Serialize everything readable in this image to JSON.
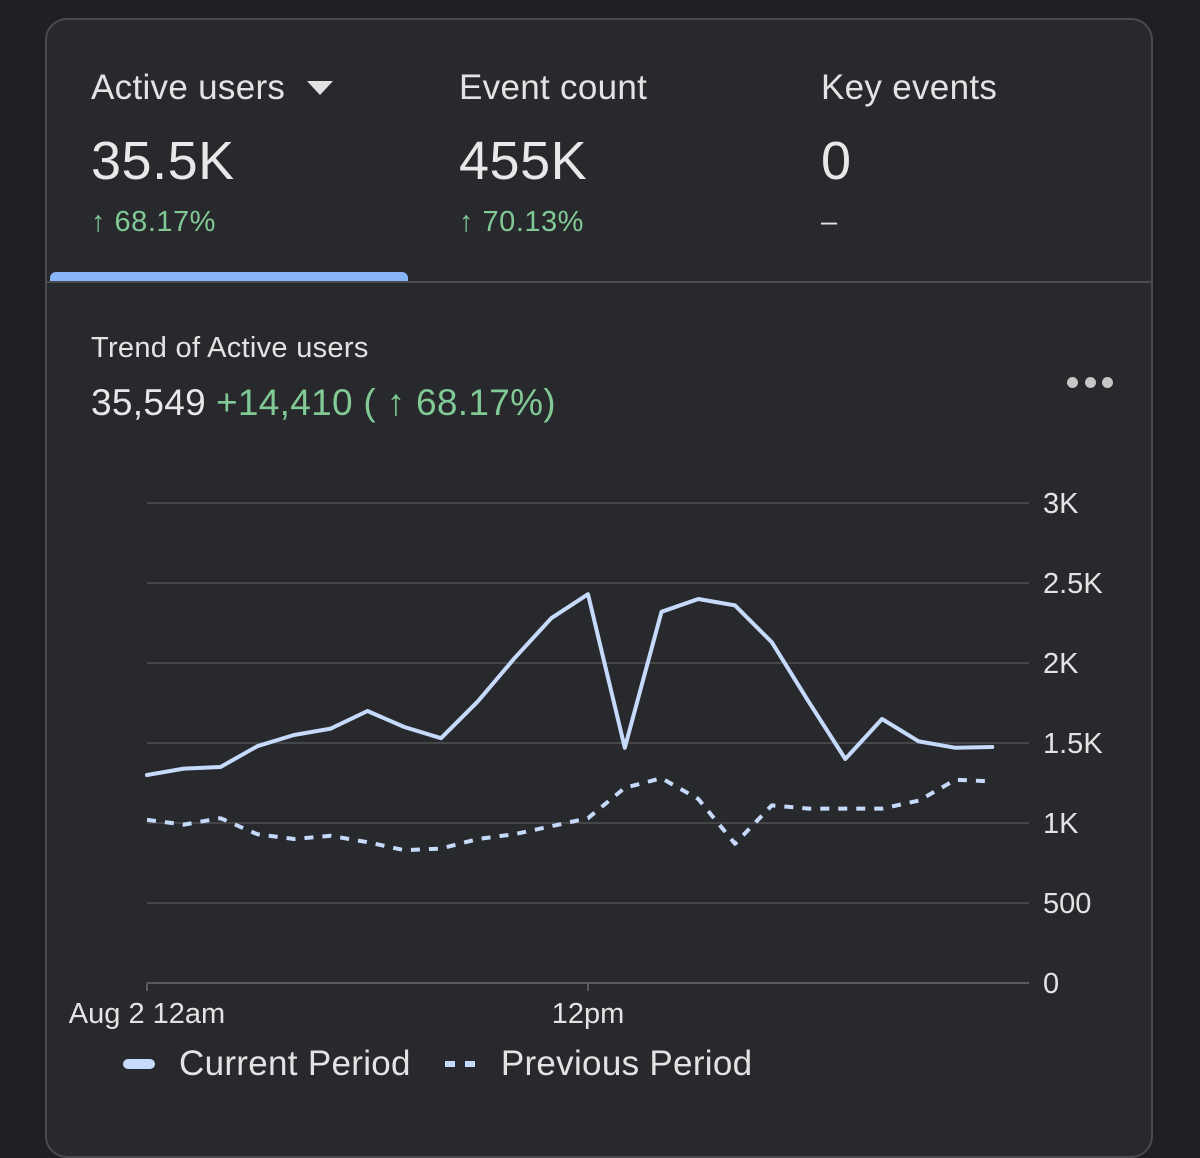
{
  "metrics": [
    {
      "label": "Active users",
      "value": "35.5K",
      "change": "↑ 68.17%"
    },
    {
      "label": "Event count",
      "value": "455K",
      "change": "↑ 70.13%"
    },
    {
      "label": "Key events",
      "value": "0",
      "change": "–"
    }
  ],
  "trend": {
    "title": "Trend of Active users",
    "total": "35,549",
    "delta": "+14,410 ( ↑ 68.17%)"
  },
  "colors": {
    "accent": "#8ab4f8",
    "line": "#c6dafc",
    "positive": "#81c995",
    "background": "#28292d"
  },
  "chart_data": {
    "type": "line",
    "title": "Trend of Active users",
    "xlabel": "",
    "ylabel": "",
    "ylim": [
      0,
      3000
    ],
    "y_ticks": [
      0,
      500,
      1000,
      1500,
      2000,
      2500,
      3000
    ],
    "y_tick_labels": [
      "0",
      "500",
      "1K",
      "1.5K",
      "2K",
      "2.5K",
      "3K"
    ],
    "x_ticks": [
      0,
      12
    ],
    "x_tick_labels": [
      "Aug 2 12am",
      "12pm"
    ],
    "x": [
      0,
      1,
      2,
      3,
      4,
      5,
      6,
      7,
      8,
      9,
      10,
      11,
      12,
      13,
      14,
      15,
      16,
      17,
      18,
      19,
      20,
      21,
      22,
      23
    ],
    "grid": true,
    "legend_position": "bottom",
    "series": [
      {
        "name": "Current Period",
        "style": "solid",
        "values": [
          1300,
          1340,
          1350,
          1480,
          1550,
          1590,
          1700,
          1600,
          1530,
          1760,
          2030,
          2280,
          2430,
          1470,
          2320,
          2400,
          2360,
          2130,
          1760,
          1400,
          1650,
          1510,
          1470,
          1475
        ]
      },
      {
        "name": "Previous Period",
        "style": "dashed",
        "values": [
          1020,
          990,
          1030,
          930,
          900,
          920,
          880,
          830,
          840,
          900,
          930,
          980,
          1030,
          1220,
          1280,
          1150,
          870,
          1110,
          1090,
          1090,
          1090,
          1140,
          1270,
          1260
        ]
      }
    ]
  }
}
